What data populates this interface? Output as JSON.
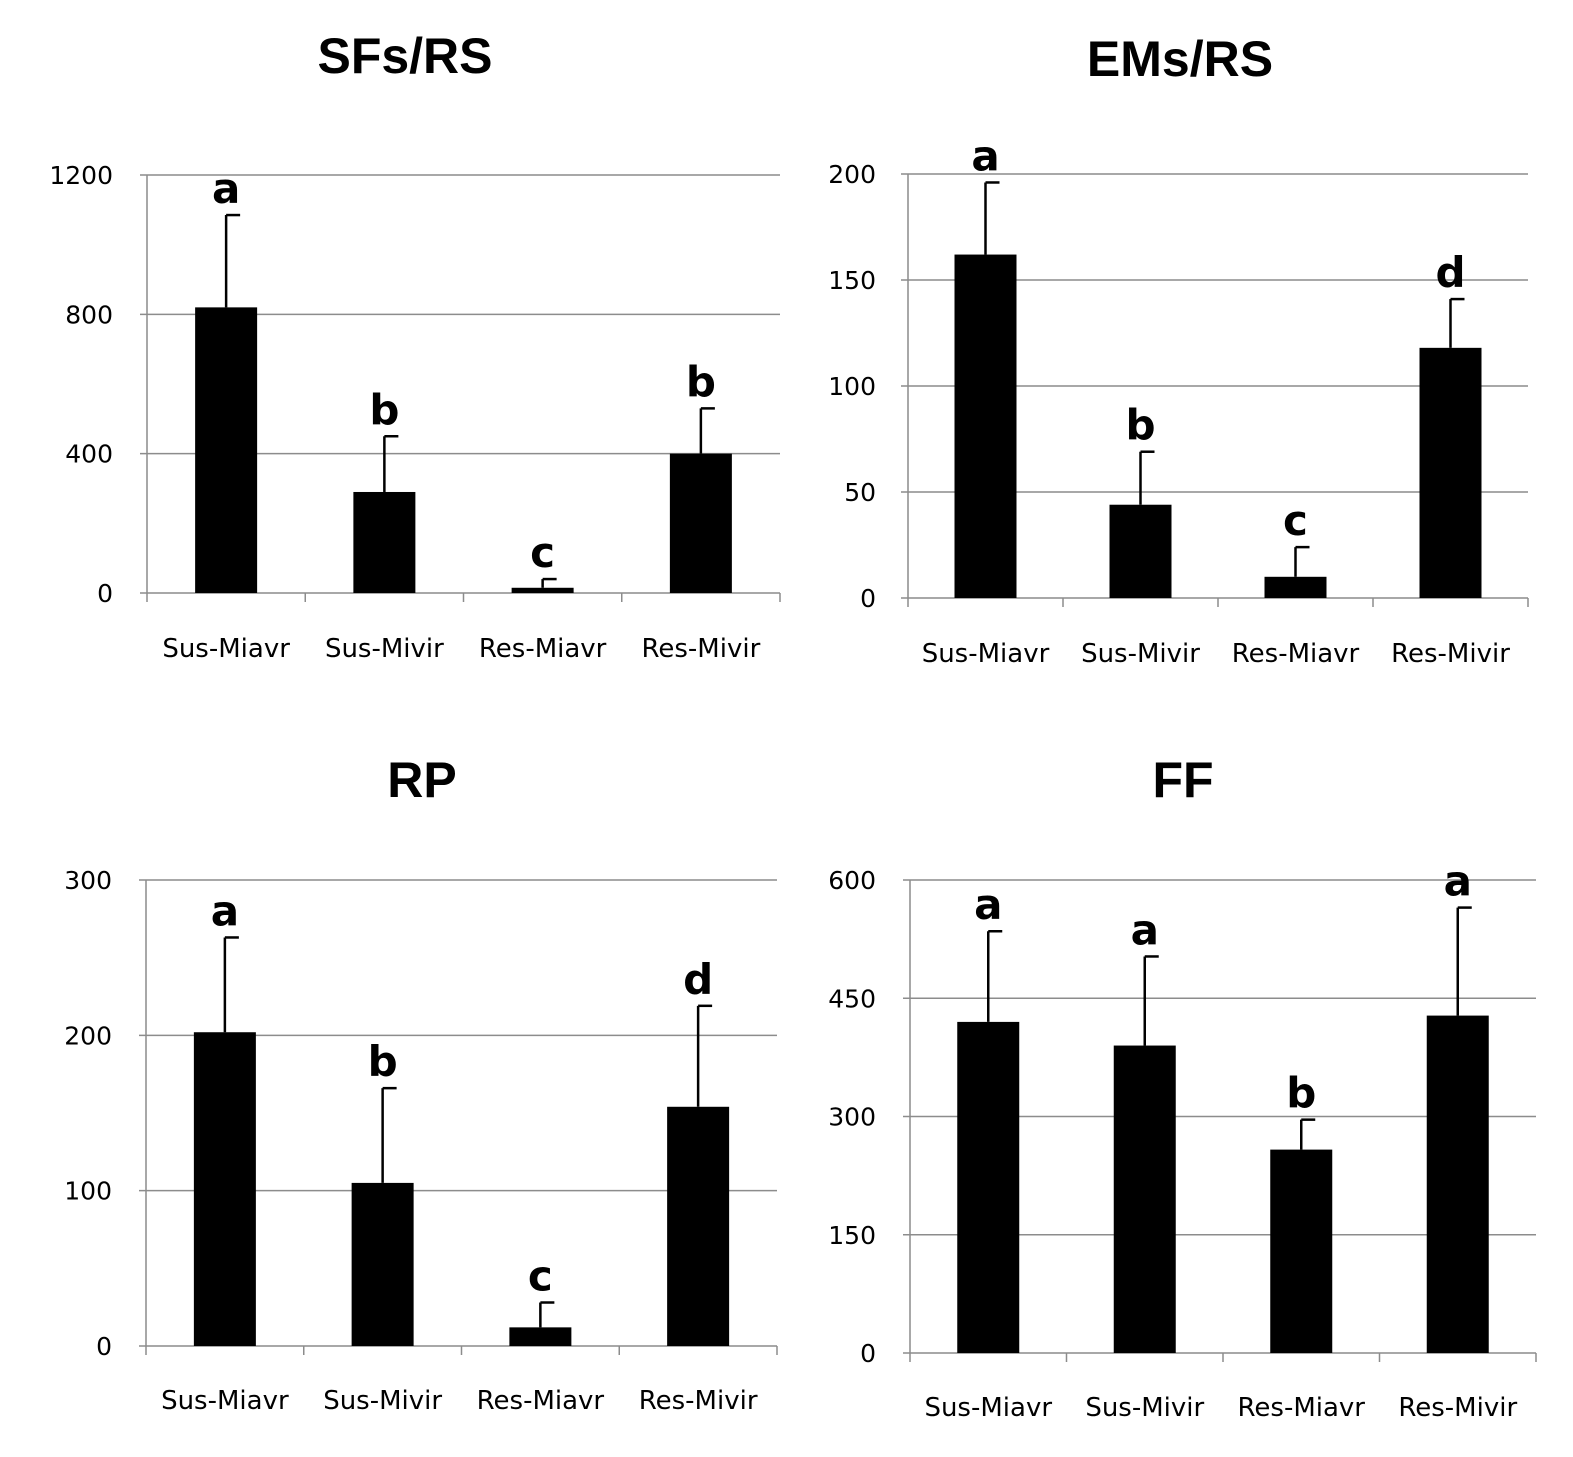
{
  "colors": {
    "bar": "#000000",
    "grid": "#8c8c8c",
    "text": "#000000"
  },
  "chart_data": [
    {
      "type": "bar",
      "title": "SFs/RS",
      "xlabel": "",
      "ylabel": "",
      "categories": [
        "Sus-Miavr",
        "Sus-Mivir",
        "Res-Miavr",
        "Res-Mivir"
      ],
      "values": [
        820,
        290,
        15,
        400
      ],
      "errors": [
        265,
        160,
        25,
        130
      ],
      "annotations": [
        "a",
        "b",
        "c",
        "b"
      ],
      "ylim": [
        0,
        1200
      ],
      "yticks": [
        0,
        400,
        800,
        1200
      ],
      "grid": true
    },
    {
      "type": "bar",
      "title": "EMs/RS",
      "xlabel": "",
      "ylabel": "",
      "categories": [
        "Sus-Miavr",
        "Sus-Mivir",
        "Res-Miavr",
        "Res-Mivir"
      ],
      "values": [
        162,
        44,
        10,
        118
      ],
      "errors": [
        34,
        25,
        14,
        23
      ],
      "annotations": [
        "a",
        "b",
        "c",
        "d"
      ],
      "ylim": [
        0,
        200
      ],
      "yticks": [
        0,
        50,
        100,
        150,
        200
      ],
      "grid": true
    },
    {
      "type": "bar",
      "title": "RP",
      "xlabel": "",
      "ylabel": "",
      "categories": [
        "Sus-Miavr",
        "Sus-Mivir",
        "Res-Miavr",
        "Res-Mivir"
      ],
      "values": [
        202,
        105,
        12,
        154
      ],
      "errors": [
        61,
        61,
        16,
        65
      ],
      "annotations": [
        "a",
        "b",
        "c",
        "d"
      ],
      "ylim": [
        0,
        300
      ],
      "yticks": [
        0,
        100,
        200,
        300
      ],
      "grid": true
    },
    {
      "type": "bar",
      "title": "FF",
      "xlabel": "",
      "ylabel": "",
      "categories": [
        "Sus-Miavr",
        "Sus-Mivir",
        "Res-Miavr",
        "Res-Mivir"
      ],
      "values": [
        420,
        390,
        258,
        428
      ],
      "errors": [
        115,
        113,
        38,
        137
      ],
      "annotations": [
        "a",
        "a",
        "b",
        "a"
      ],
      "ylim": [
        0,
        600
      ],
      "yticks": [
        0,
        150,
        300,
        450,
        600
      ],
      "grid": true
    }
  ]
}
